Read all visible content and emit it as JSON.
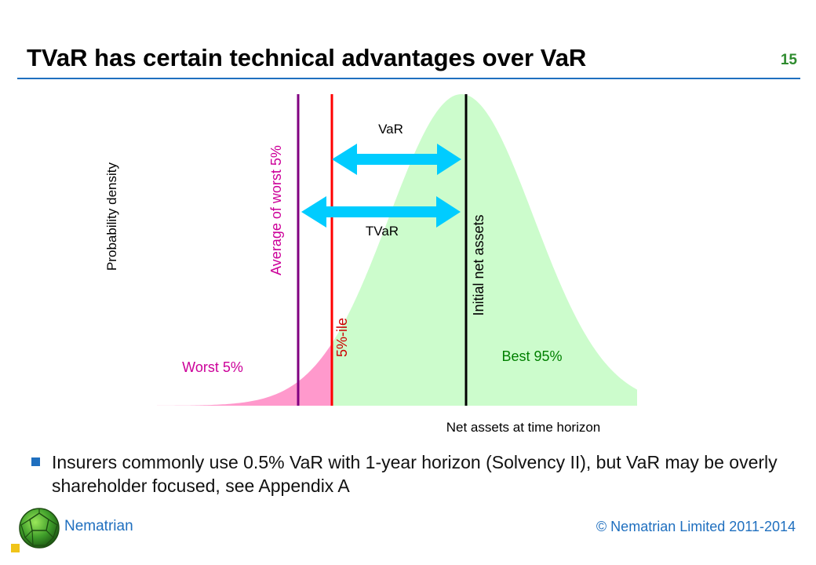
{
  "slide": {
    "title": "TVaR has certain technical advantages over VaR",
    "number": "15"
  },
  "diagram": {
    "y_axis_label": "Probability density",
    "x_axis_label": "Net assets at time horizon",
    "average_line_label": "Average of worst 5%",
    "percentile_line_label": "5%-ile",
    "initial_line_label": "Initial net assets",
    "var_label": "VaR",
    "tvar_label": "TVaR",
    "worst_region_label": "Worst 5%",
    "best_region_label": "Best 95%",
    "colors": {
      "best_fill": "#ccfccc",
      "worst_fill": "#ff99cc",
      "average_line": "#800080",
      "percentile_line": "#ff0000",
      "initial_line": "#000000",
      "arrow": "#00ccff",
      "worst_text": "#cc0099",
      "best_text": "#008000"
    }
  },
  "bullet": {
    "text": "Insurers commonly use 0.5% VaR with 1-year horizon (Solvency II), but VaR may be overly shareholder focused, see Appendix A"
  },
  "footer": {
    "brand": "Nematrian",
    "copyright": "© Nematrian Limited 2011-2014"
  }
}
